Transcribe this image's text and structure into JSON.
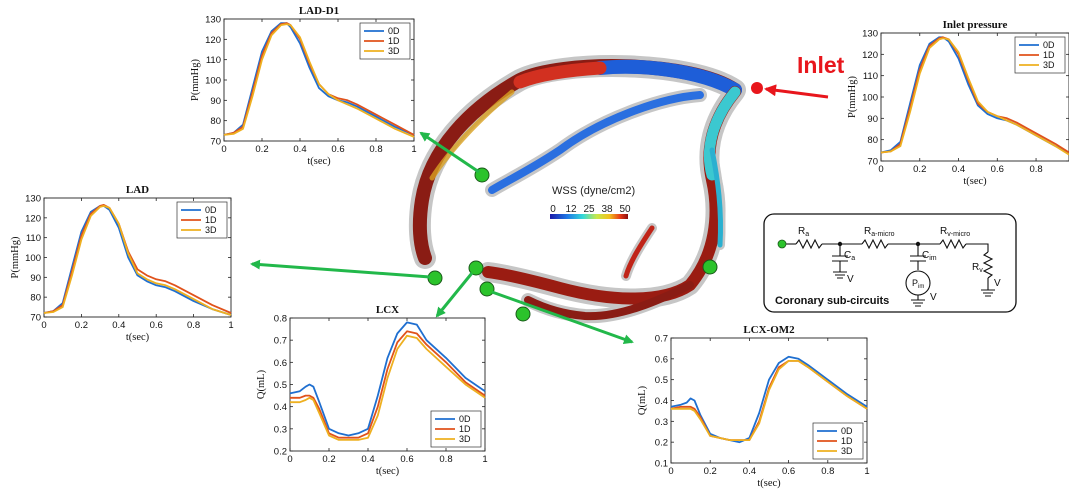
{
  "colors": {
    "series": [
      "#1f6fd0",
      "#e0521b",
      "#eeb020"
    ],
    "marker": "#2bc32b",
    "arrow_green": "#22b84a",
    "inlet": "#e8161c"
  },
  "inlet_label": "Inlet",
  "wss": {
    "title": "WSS (dyne/cm2)",
    "ticks": [
      "0",
      "12",
      "25",
      "38",
      "50"
    ]
  },
  "circuit": {
    "title": "Coronary sub-circuits",
    "labels": {
      "ra": "R",
      "ra_sub": "a",
      "ramicro": "R",
      "ramicro_sub": "a-micro",
      "rvmicro": "R",
      "rvmicro_sub": "v-micro",
      "ca": "C",
      "ca_sub": "a",
      "cim": "C",
      "cim_sub": "im",
      "pim": "P",
      "pim_sub": "im",
      "rv": "R",
      "rv_sub": "v",
      "v1": "V",
      "v2": "V",
      "v3": "V"
    }
  },
  "chart_data": [
    {
      "type": "line",
      "title": "LAD-D1",
      "xlabel": "t(sec)",
      "ylabel": "P(mmHg)",
      "xlim": [
        0,
        1
      ],
      "ylim": [
        70,
        130
      ],
      "xticks": [
        0,
        0.2,
        0.4,
        0.6,
        0.8,
        1
      ],
      "xtick_labels": [
        "0",
        "0.2",
        "0.4",
        "0.6",
        "0.8",
        "1"
      ],
      "yticks": [
        70,
        80,
        90,
        100,
        110,
        120,
        130
      ],
      "ytick_labels": [
        "70",
        "80",
        "90",
        "100",
        "110",
        "120",
        "130"
      ],
      "legend": "top-right",
      "x": [
        0,
        0.05,
        0.1,
        0.15,
        0.2,
        0.25,
        0.3,
        0.33,
        0.35,
        0.4,
        0.45,
        0.5,
        0.55,
        0.6,
        0.65,
        0.7,
        0.8,
        0.9,
        1
      ],
      "series": [
        {
          "name": "0D",
          "values": [
            73,
            74,
            78,
            96,
            114,
            124,
            128,
            128,
            126,
            118,
            106,
            96,
            92,
            90,
            89,
            87,
            82,
            77,
            73
          ]
        },
        {
          "name": "1D",
          "values": [
            73,
            74,
            77,
            94,
            112,
            123,
            127.5,
            128,
            127,
            120,
            108,
            98,
            93,
            91,
            90,
            88,
            83,
            78,
            73
          ]
        },
        {
          "name": "3D",
          "values": [
            73,
            73.5,
            76,
            92,
            110,
            122,
            127,
            127.5,
            127,
            121,
            109,
            98,
            93,
            90,
            88,
            86,
            81,
            76,
            72
          ]
        }
      ]
    },
    {
      "type": "line",
      "title": "Inlet pressure",
      "xlabel": "t(sec)",
      "ylabel": "P(mmHg)",
      "xlim": [
        0,
        0.97
      ],
      "ylim": [
        70,
        130
      ],
      "xticks": [
        0,
        0.2,
        0.4,
        0.6,
        0.8
      ],
      "xtick_labels": [
        "0",
        "0.2",
        "0.4",
        "0.6",
        "0.8"
      ],
      "yticks": [
        70,
        80,
        90,
        100,
        110,
        120,
        130
      ],
      "ytick_labels": [
        "70",
        "80",
        "90",
        "100",
        "110",
        "120",
        "130"
      ],
      "legend": "top-right",
      "x": [
        0,
        0.05,
        0.1,
        0.15,
        0.2,
        0.25,
        0.3,
        0.32,
        0.35,
        0.4,
        0.45,
        0.5,
        0.55,
        0.6,
        0.65,
        0.7,
        0.8,
        0.9,
        0.97
      ],
      "series": [
        {
          "name": "0D",
          "values": [
            74,
            75,
            79,
            97,
            115,
            125,
            128,
            128,
            126,
            118,
            106,
            96,
            92,
            90,
            89,
            87,
            82,
            77,
            74
          ]
        },
        {
          "name": "1D",
          "values": [
            74,
            74.5,
            78,
            95,
            113,
            124,
            127.5,
            128,
            127,
            120,
            108,
            97,
            93,
            91,
            90,
            88,
            83,
            78,
            74
          ]
        },
        {
          "name": "3D",
          "values": [
            74,
            74.5,
            77,
            93,
            111,
            123,
            127,
            127.5,
            127,
            121,
            109,
            98,
            93,
            91,
            89,
            87,
            82,
            77,
            73
          ]
        }
      ]
    },
    {
      "type": "line",
      "title": "LAD",
      "xlabel": "t(sec)",
      "ylabel": "P(mmHg)",
      "xlim": [
        0,
        1
      ],
      "ylim": [
        70,
        130
      ],
      "xticks": [
        0,
        0.2,
        0.4,
        0.6,
        0.8,
        1
      ],
      "xtick_labels": [
        "0",
        "0.2",
        "0.4",
        "0.6",
        "0.8",
        "1"
      ],
      "yticks": [
        70,
        80,
        90,
        100,
        110,
        120,
        130
      ],
      "ytick_labels": [
        "70",
        "80",
        "90",
        "100",
        "110",
        "120",
        "130"
      ],
      "legend": "top-right",
      "x": [
        0,
        0.05,
        0.1,
        0.15,
        0.2,
        0.25,
        0.3,
        0.32,
        0.35,
        0.4,
        0.45,
        0.5,
        0.55,
        0.6,
        0.65,
        0.7,
        0.8,
        0.9,
        1
      ],
      "series": [
        {
          "name": "0D",
          "values": [
            72,
            73,
            77,
            95,
            113,
            123,
            126,
            126,
            124,
            115,
            100,
            91,
            88,
            86,
            85,
            83,
            78,
            74,
            71
          ]
        },
        {
          "name": "1D",
          "values": [
            72,
            73,
            76,
            93,
            111,
            122,
            126,
            126.5,
            125,
            117,
            103,
            94,
            91,
            89,
            88,
            86,
            81,
            76,
            72
          ]
        },
        {
          "name": "3D",
          "values": [
            72,
            72.5,
            75,
            91,
            109,
            121,
            125.5,
            126,
            125,
            117,
            102,
            92,
            89,
            87,
            86,
            84,
            79,
            74,
            71
          ]
        }
      ]
    },
    {
      "type": "line",
      "title": "LCX",
      "xlabel": "t(sec)",
      "ylabel": "Q(mL)",
      "xlim": [
        0,
        1
      ],
      "ylim": [
        0.2,
        0.8
      ],
      "xticks": [
        0,
        0.2,
        0.4,
        0.6,
        0.8,
        1
      ],
      "xtick_labels": [
        "0",
        "0.2",
        "0.4",
        "0.6",
        "0.8",
        "1"
      ],
      "yticks": [
        0.2,
        0.3,
        0.4,
        0.5,
        0.6,
        0.7,
        0.8
      ],
      "ytick_labels": [
        "0.2",
        "0.3",
        "0.4",
        "0.5",
        "0.6",
        "0.7",
        "0.8"
      ],
      "legend": "bottom-right",
      "x": [
        0,
        0.05,
        0.08,
        0.1,
        0.12,
        0.15,
        0.2,
        0.25,
        0.3,
        0.35,
        0.4,
        0.45,
        0.5,
        0.55,
        0.6,
        0.65,
        0.7,
        0.8,
        0.9,
        1
      ],
      "series": [
        {
          "name": "0D",
          "values": [
            0.46,
            0.47,
            0.49,
            0.5,
            0.49,
            0.42,
            0.3,
            0.28,
            0.27,
            0.28,
            0.3,
            0.45,
            0.62,
            0.73,
            0.78,
            0.77,
            0.7,
            0.62,
            0.53,
            0.47
          ]
        },
        {
          "name": "1D",
          "values": [
            0.44,
            0.44,
            0.45,
            0.45,
            0.44,
            0.39,
            0.28,
            0.26,
            0.26,
            0.26,
            0.28,
            0.4,
            0.57,
            0.69,
            0.74,
            0.73,
            0.68,
            0.6,
            0.51,
            0.45
          ]
        },
        {
          "name": "3D",
          "values": [
            0.42,
            0.42,
            0.43,
            0.44,
            0.43,
            0.37,
            0.27,
            0.25,
            0.25,
            0.25,
            0.26,
            0.36,
            0.53,
            0.66,
            0.72,
            0.71,
            0.66,
            0.58,
            0.5,
            0.44
          ]
        }
      ]
    },
    {
      "type": "line",
      "title": "LCX-OM2",
      "xlabel": "t(sec)",
      "ylabel": "Q(mL)",
      "xlim": [
        0,
        1
      ],
      "ylim": [
        0.1,
        0.7
      ],
      "xticks": [
        0,
        0.2,
        0.4,
        0.6,
        0.8,
        1
      ],
      "xtick_labels": [
        "0",
        "0.2",
        "0.4",
        "0.6",
        "0.8",
        "1"
      ],
      "yticks": [
        0.1,
        0.2,
        0.3,
        0.4,
        0.5,
        0.6,
        0.7
      ],
      "ytick_labels": [
        "0.1",
        "0.2",
        "0.3",
        "0.4",
        "0.5",
        "0.6",
        "0.7"
      ],
      "legend": "bottom-right",
      "x": [
        0,
        0.05,
        0.08,
        0.1,
        0.12,
        0.15,
        0.2,
        0.25,
        0.3,
        0.35,
        0.4,
        0.45,
        0.5,
        0.55,
        0.6,
        0.65,
        0.7,
        0.8,
        0.9,
        1
      ],
      "series": [
        {
          "name": "0D",
          "values": [
            0.37,
            0.38,
            0.39,
            0.41,
            0.4,
            0.33,
            0.24,
            0.22,
            0.21,
            0.2,
            0.22,
            0.34,
            0.5,
            0.58,
            0.61,
            0.6,
            0.57,
            0.5,
            0.43,
            0.37
          ]
        },
        {
          "name": "1D",
          "values": [
            0.36,
            0.37,
            0.37,
            0.37,
            0.36,
            0.32,
            0.23,
            0.22,
            0.21,
            0.21,
            0.21,
            0.3,
            0.46,
            0.56,
            0.59,
            0.59,
            0.56,
            0.49,
            0.42,
            0.36
          ]
        },
        {
          "name": "3D",
          "values": [
            0.36,
            0.36,
            0.36,
            0.36,
            0.35,
            0.31,
            0.23,
            0.22,
            0.21,
            0.21,
            0.21,
            0.29,
            0.45,
            0.55,
            0.59,
            0.59,
            0.56,
            0.49,
            0.42,
            0.36
          ]
        }
      ]
    }
  ]
}
